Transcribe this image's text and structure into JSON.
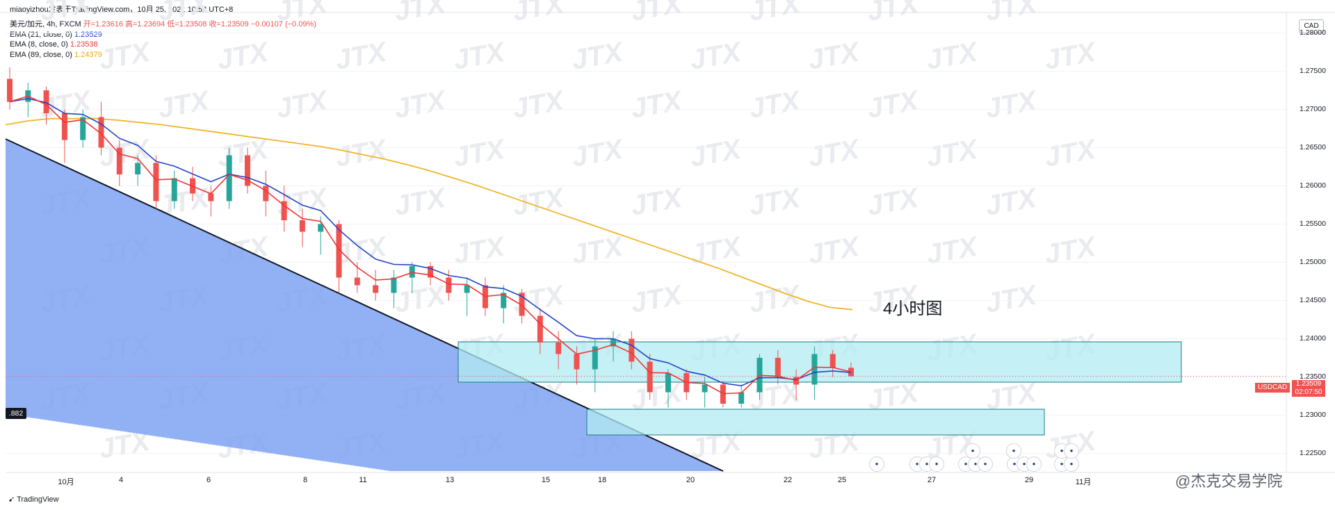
{
  "header": {
    "author_line": "miaoyizhou发表于TradingView.com，10月 25, 2021 10:52 UTC+8"
  },
  "legend": {
    "symbol_line": "美元/加元, 4h, FXCM",
    "ohlc": "开=1.23616 高=1.23694 低=1.23508 收=1.23509 −0.00107 (−0.09%)",
    "ema21_label": "EMA (21, close, 0)",
    "ema21_value": "1.23529",
    "ema8_label": "EMA (8, close, 0)",
    "ema8_value": "1.23538",
    "ema89_label": "EMA (89, close, 0)",
    "ema89_value": "1.24379"
  },
  "price_axis": {
    "currency": "CAD",
    "ticks": [
      "1.28000",
      "1.27500",
      "1.27000",
      "1.26500",
      "1.26000",
      "1.25500",
      "1.25000",
      "1.24500",
      "1.24000",
      "1.23500",
      "1.23000",
      "1.22500"
    ],
    "current_symbol": "USDCAD",
    "current_price": "1.23509",
    "countdown": "02:07:50"
  },
  "time_axis": {
    "labels": [
      "10月",
      "4",
      "6",
      "8",
      "11",
      "13",
      "15",
      "18",
      "20",
      "22",
      "25",
      "27",
      "29",
      "11月"
    ]
  },
  "left_tag": ".882",
  "annotation": "4小时图",
  "watermark": "JTX",
  "brand": "@杰克交易学院",
  "footer": {
    "logo_text": "TradingView"
  },
  "colors": {
    "up": "#26a69a",
    "down": "#ef5350",
    "ema21": "#2142c6",
    "ema8": "#ef3535",
    "ema89": "#f0b429",
    "zone_fill": "#b2ebf2",
    "zone_stroke": "#1a7a86",
    "wedge": "#7fa3f2"
  },
  "chart_data": {
    "type": "candlestick",
    "interval": "4h",
    "ylim": [
      1.2225,
      1.2825
    ],
    "ema89": [
      1.268,
      1.2685,
      1.2688,
      1.2688,
      1.2688,
      1.2686,
      1.2683,
      1.268,
      1.2676,
      1.2672,
      1.2668,
      1.2664,
      1.266,
      1.2656,
      1.2652,
      1.2647,
      1.2641,
      1.2635,
      1.2628,
      1.262,
      1.2611,
      1.2602,
      1.2592,
      1.2582,
      1.2572,
      1.2562,
      1.2552,
      1.2542,
      1.2532,
      1.2522,
      1.2512,
      1.2502,
      1.2492,
      1.2481,
      1.247,
      1.2459,
      1.2449,
      1.2441,
      1.2438
    ],
    "candles_sampled": [
      [
        1.274,
        1.2755,
        1.27,
        1.271
      ],
      [
        1.271,
        1.2735,
        1.269,
        1.2725
      ],
      [
        1.2725,
        1.273,
        1.268,
        1.2695
      ],
      [
        1.2695,
        1.27,
        1.263,
        1.266
      ],
      [
        1.266,
        1.27,
        1.265,
        1.269
      ],
      [
        1.269,
        1.271,
        1.264,
        1.265
      ],
      [
        1.265,
        1.266,
        1.26,
        1.2615
      ],
      [
        1.2615,
        1.264,
        1.26,
        1.263
      ],
      [
        1.263,
        1.264,
        1.257,
        1.258
      ],
      [
        1.258,
        1.262,
        1.257,
        1.261
      ],
      [
        1.261,
        1.2625,
        1.258,
        1.259
      ],
      [
        1.259,
        1.26,
        1.256,
        1.258
      ],
      [
        1.258,
        1.265,
        1.257,
        1.264
      ],
      [
        1.264,
        1.265,
        1.259,
        1.26
      ],
      [
        1.26,
        1.262,
        1.256,
        1.258
      ],
      [
        1.258,
        1.26,
        1.254,
        1.2555
      ],
      [
        1.2555,
        1.257,
        1.252,
        1.254
      ],
      [
        1.254,
        1.256,
        1.251,
        1.255
      ],
      [
        1.255,
        1.2555,
        1.246,
        1.248
      ],
      [
        1.248,
        1.25,
        1.246,
        1.247
      ],
      [
        1.247,
        1.249,
        1.245,
        1.246
      ],
      [
        1.246,
        1.249,
        1.244,
        1.248
      ],
      [
        1.248,
        1.25,
        1.246,
        1.2495
      ],
      [
        1.2495,
        1.25,
        1.247,
        1.248
      ],
      [
        1.248,
        1.249,
        1.245,
        1.246
      ],
      [
        1.246,
        1.248,
        1.243,
        1.247
      ],
      [
        1.247,
        1.248,
        1.243,
        1.244
      ],
      [
        1.244,
        1.247,
        1.242,
        1.246
      ],
      [
        1.246,
        1.2465,
        1.242,
        1.243
      ],
      [
        1.243,
        1.244,
        1.238,
        1.2395
      ],
      [
        1.2395,
        1.241,
        1.236,
        1.238
      ],
      [
        1.238,
        1.239,
        1.234,
        1.236
      ],
      [
        1.236,
        1.24,
        1.233,
        1.239
      ],
      [
        1.239,
        1.241,
        1.237,
        1.24
      ],
      [
        1.24,
        1.241,
        1.236,
        1.237
      ],
      [
        1.237,
        1.238,
        1.232,
        1.233
      ],
      [
        1.233,
        1.236,
        1.231,
        1.2355
      ],
      [
        1.2355,
        1.236,
        1.232,
        1.233
      ],
      [
        1.233,
        1.235,
        1.231,
        1.234
      ],
      [
        1.234,
        1.2345,
        1.231,
        1.2315
      ],
      [
        1.2315,
        1.234,
        1.231,
        1.233
      ],
      [
        1.233,
        1.238,
        1.232,
        1.2375
      ],
      [
        1.2375,
        1.2385,
        1.234,
        1.235
      ],
      [
        1.235,
        1.236,
        1.232,
        1.234
      ],
      [
        1.234,
        1.239,
        1.232,
        1.238
      ],
      [
        1.238,
        1.2385,
        1.235,
        1.2362
      ],
      [
        1.2362,
        1.2369,
        1.235,
        1.2351
      ]
    ]
  }
}
